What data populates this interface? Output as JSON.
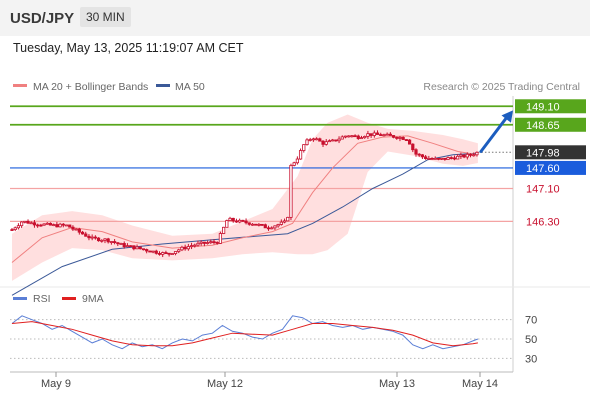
{
  "header": {
    "pair": "USD/JPY",
    "timeframe": "30 MIN",
    "timestamp": "Tuesday, May 13, 2025 11:19:07 AM CET"
  },
  "legend": {
    "ma20_label": "MA 20 + Bollinger Bands",
    "ma50_label": "MA 50",
    "copyright": "Research © 2025 Trading Central",
    "rsi_label": "RSI",
    "rsi_ma_label": "9MA"
  },
  "colors": {
    "candle": "#c8102e",
    "bollinger": "#ffd9d9",
    "ma20": "#f08080",
    "ma50": "#3b5998",
    "resistance": "#58a61c",
    "current": "#444444",
    "pivot": "#1a5cdc",
    "support": "#f4a3a3",
    "arrow": "#1c5dbf",
    "rsi": "#5b7fd6",
    "rsi_ma": "#e02020"
  },
  "chart_data": [
    {
      "type": "candlestick",
      "title": "USD/JPY",
      "timeframe": "30 MIN",
      "x_tick_labels": [
        "May 9",
        "May 12",
        "May 13",
        "May 14"
      ],
      "price_levels": [
        {
          "label": "149.10",
          "value": 149.1,
          "kind": "resistance"
        },
        {
          "label": "148.65",
          "value": 148.65,
          "kind": "resistance"
        },
        {
          "label": "147.98",
          "value": 147.98,
          "kind": "current"
        },
        {
          "label": "147.60",
          "value": 147.6,
          "kind": "pivot"
        },
        {
          "label": "147.10",
          "value": 147.1,
          "kind": "support"
        },
        {
          "label": "146.30",
          "value": 146.3,
          "kind": "support"
        }
      ],
      "series": [
        {
          "name": "MA 20 + Bollinger Bands",
          "kind": "ma20"
        },
        {
          "name": "MA 50",
          "kind": "ma50"
        }
      ],
      "close_path": [
        {
          "x": 0,
          "y": 146.1
        },
        {
          "x": 10,
          "y": 146.3
        },
        {
          "x": 22,
          "y": 146.25
        },
        {
          "x": 40,
          "y": 146.2
        },
        {
          "x": 55,
          "y": 146.2
        },
        {
          "x": 62,
          "y": 146.1
        },
        {
          "x": 80,
          "y": 145.88
        },
        {
          "x": 95,
          "y": 145.85
        },
        {
          "x": 110,
          "y": 145.72
        },
        {
          "x": 125,
          "y": 145.65
        },
        {
          "x": 140,
          "y": 145.57
        },
        {
          "x": 155,
          "y": 145.5
        },
        {
          "x": 165,
          "y": 145.6
        },
        {
          "x": 180,
          "y": 145.72
        },
        {
          "x": 195,
          "y": 145.78
        },
        {
          "x": 205,
          "y": 145.8
        },
        {
          "x": 215,
          "y": 146.35
        },
        {
          "x": 225,
          "y": 146.3
        },
        {
          "x": 240,
          "y": 146.25
        },
        {
          "x": 255,
          "y": 146.15
        },
        {
          "x": 265,
          "y": 146.22
        },
        {
          "x": 275,
          "y": 146.3
        },
        {
          "x": 277,
          "y": 147.6
        },
        {
          "x": 285,
          "y": 147.85
        },
        {
          "x": 292,
          "y": 148.2
        },
        {
          "x": 300,
          "y": 148.35
        },
        {
          "x": 310,
          "y": 148.2
        },
        {
          "x": 320,
          "y": 148.25
        },
        {
          "x": 335,
          "y": 148.4
        },
        {
          "x": 345,
          "y": 148.35
        },
        {
          "x": 355,
          "y": 148.42
        },
        {
          "x": 370,
          "y": 148.4
        },
        {
          "x": 385,
          "y": 148.35
        },
        {
          "x": 395,
          "y": 148.3
        },
        {
          "x": 402,
          "y": 147.95
        },
        {
          "x": 412,
          "y": 147.85
        },
        {
          "x": 425,
          "y": 147.8
        },
        {
          "x": 440,
          "y": 147.85
        },
        {
          "x": 455,
          "y": 147.9
        },
        {
          "x": 465,
          "y": 147.98
        }
      ],
      "ma20": [
        {
          "x": 0,
          "y": 145.3
        },
        {
          "x": 30,
          "y": 145.9
        },
        {
          "x": 60,
          "y": 146.15
        },
        {
          "x": 90,
          "y": 146.05
        },
        {
          "x": 120,
          "y": 145.8
        },
        {
          "x": 160,
          "y": 145.65
        },
        {
          "x": 200,
          "y": 145.72
        },
        {
          "x": 230,
          "y": 145.9
        },
        {
          "x": 260,
          "y": 146.05
        },
        {
          "x": 280,
          "y": 146.25
        },
        {
          "x": 300,
          "y": 147.0
        },
        {
          "x": 320,
          "y": 147.6
        },
        {
          "x": 345,
          "y": 148.2
        },
        {
          "x": 370,
          "y": 148.35
        },
        {
          "x": 395,
          "y": 148.38
        },
        {
          "x": 420,
          "y": 148.2
        },
        {
          "x": 445,
          "y": 148.0
        },
        {
          "x": 465,
          "y": 147.92
        }
      ],
      "ma50": [
        {
          "x": 0,
          "y": 144.5
        },
        {
          "x": 50,
          "y": 145.2
        },
        {
          "x": 100,
          "y": 145.62
        },
        {
          "x": 150,
          "y": 145.75
        },
        {
          "x": 200,
          "y": 145.85
        },
        {
          "x": 250,
          "y": 145.95
        },
        {
          "x": 275,
          "y": 146.0
        },
        {
          "x": 300,
          "y": 146.25
        },
        {
          "x": 330,
          "y": 146.65
        },
        {
          "x": 360,
          "y": 147.1
        },
        {
          "x": 390,
          "y": 147.45
        },
        {
          "x": 415,
          "y": 147.8
        },
        {
          "x": 440,
          "y": 147.92
        },
        {
          "x": 465,
          "y": 147.96
        }
      ],
      "bollinger_upper": [
        {
          "x": 0,
          "y": 146.0
        },
        {
          "x": 30,
          "y": 146.45
        },
        {
          "x": 60,
          "y": 146.55
        },
        {
          "x": 90,
          "y": 146.45
        },
        {
          "x": 120,
          "y": 146.2
        },
        {
          "x": 160,
          "y": 145.95
        },
        {
          "x": 200,
          "y": 146.0
        },
        {
          "x": 230,
          "y": 146.3
        },
        {
          "x": 260,
          "y": 146.6
        },
        {
          "x": 285,
          "y": 147.4
        },
        {
          "x": 300,
          "y": 148.3
        },
        {
          "x": 315,
          "y": 148.7
        },
        {
          "x": 335,
          "y": 148.9
        },
        {
          "x": 355,
          "y": 148.7
        },
        {
          "x": 375,
          "y": 148.55
        },
        {
          "x": 400,
          "y": 148.5
        },
        {
          "x": 430,
          "y": 148.4
        },
        {
          "x": 450,
          "y": 148.3
        },
        {
          "x": 465,
          "y": 148.2
        }
      ],
      "bollinger_lower": [
        {
          "x": 0,
          "y": 144.85
        },
        {
          "x": 30,
          "y": 145.3
        },
        {
          "x": 60,
          "y": 145.65
        },
        {
          "x": 90,
          "y": 145.6
        },
        {
          "x": 120,
          "y": 145.4
        },
        {
          "x": 160,
          "y": 145.35
        },
        {
          "x": 200,
          "y": 145.4
        },
        {
          "x": 230,
          "y": 145.5
        },
        {
          "x": 260,
          "y": 145.55
        },
        {
          "x": 285,
          "y": 145.5
        },
        {
          "x": 300,
          "y": 145.5
        },
        {
          "x": 315,
          "y": 145.6
        },
        {
          "x": 335,
          "y": 146.0
        },
        {
          "x": 355,
          "y": 147.5
        },
        {
          "x": 375,
          "y": 148.0
        },
        {
          "x": 400,
          "y": 147.9
        },
        {
          "x": 430,
          "y": 147.7
        },
        {
          "x": 450,
          "y": 147.65
        },
        {
          "x": 465,
          "y": 147.72
        }
      ],
      "y_range": [
        144.8,
        149.35
      ],
      "x_range": [
        0,
        500
      ],
      "forecast_arrow": {
        "from": {
          "x": 468,
          "y": 148.0
        },
        "to": {
          "x": 500,
          "y": 149.0
        }
      }
    },
    {
      "type": "line",
      "title": "RSI",
      "y_tick_labels": [
        "70",
        "50",
        "30"
      ],
      "y_ticks": [
        70,
        50,
        30
      ],
      "ylim": [
        20,
        80
      ],
      "series": [
        {
          "name": "RSI",
          "points": [
            {
              "x": 0,
              "y": 66
            },
            {
              "x": 10,
              "y": 74
            },
            {
              "x": 20,
              "y": 70
            },
            {
              "x": 30,
              "y": 66
            },
            {
              "x": 40,
              "y": 60
            },
            {
              "x": 50,
              "y": 64
            },
            {
              "x": 60,
              "y": 58
            },
            {
              "x": 70,
              "y": 52
            },
            {
              "x": 80,
              "y": 46
            },
            {
              "x": 90,
              "y": 50
            },
            {
              "x": 100,
              "y": 44
            },
            {
              "x": 110,
              "y": 40
            },
            {
              "x": 120,
              "y": 46
            },
            {
              "x": 130,
              "y": 42
            },
            {
              "x": 140,
              "y": 44
            },
            {
              "x": 150,
              "y": 40
            },
            {
              "x": 160,
              "y": 46
            },
            {
              "x": 170,
              "y": 50
            },
            {
              "x": 180,
              "y": 48
            },
            {
              "x": 190,
              "y": 54
            },
            {
              "x": 200,
              "y": 56
            },
            {
              "x": 210,
              "y": 64
            },
            {
              "x": 220,
              "y": 58
            },
            {
              "x": 230,
              "y": 56
            },
            {
              "x": 240,
              "y": 52
            },
            {
              "x": 250,
              "y": 50
            },
            {
              "x": 260,
              "y": 56
            },
            {
              "x": 270,
              "y": 60
            },
            {
              "x": 280,
              "y": 74
            },
            {
              "x": 290,
              "y": 72
            },
            {
              "x": 300,
              "y": 66
            },
            {
              "x": 310,
              "y": 68
            },
            {
              "x": 320,
              "y": 64
            },
            {
              "x": 330,
              "y": 62
            },
            {
              "x": 340,
              "y": 64
            },
            {
              "x": 350,
              "y": 60
            },
            {
              "x": 360,
              "y": 62
            },
            {
              "x": 370,
              "y": 60
            },
            {
              "x": 380,
              "y": 58
            },
            {
              "x": 390,
              "y": 54
            },
            {
              "x": 400,
              "y": 44
            },
            {
              "x": 410,
              "y": 40
            },
            {
              "x": 420,
              "y": 44
            },
            {
              "x": 430,
              "y": 40
            },
            {
              "x": 440,
              "y": 42
            },
            {
              "x": 450,
              "y": 44
            },
            {
              "x": 460,
              "y": 48
            },
            {
              "x": 465,
              "y": 50
            }
          ]
        },
        {
          "name": "9MA",
          "points": [
            {
              "x": 0,
              "y": 66
            },
            {
              "x": 20,
              "y": 68
            },
            {
              "x": 40,
              "y": 64
            },
            {
              "x": 60,
              "y": 60
            },
            {
              "x": 80,
              "y": 54
            },
            {
              "x": 100,
              "y": 48
            },
            {
              "x": 120,
              "y": 44
            },
            {
              "x": 140,
              "y": 43
            },
            {
              "x": 160,
              "y": 43
            },
            {
              "x": 180,
              "y": 46
            },
            {
              "x": 200,
              "y": 51
            },
            {
              "x": 220,
              "y": 56
            },
            {
              "x": 240,
              "y": 55
            },
            {
              "x": 260,
              "y": 54
            },
            {
              "x": 280,
              "y": 60
            },
            {
              "x": 300,
              "y": 66
            },
            {
              "x": 320,
              "y": 66
            },
            {
              "x": 340,
              "y": 64
            },
            {
              "x": 360,
              "y": 62
            },
            {
              "x": 380,
              "y": 59
            },
            {
              "x": 400,
              "y": 54
            },
            {
              "x": 420,
              "y": 46
            },
            {
              "x": 440,
              "y": 43
            },
            {
              "x": 460,
              "y": 45
            },
            {
              "x": 465,
              "y": 46
            }
          ]
        }
      ]
    }
  ]
}
